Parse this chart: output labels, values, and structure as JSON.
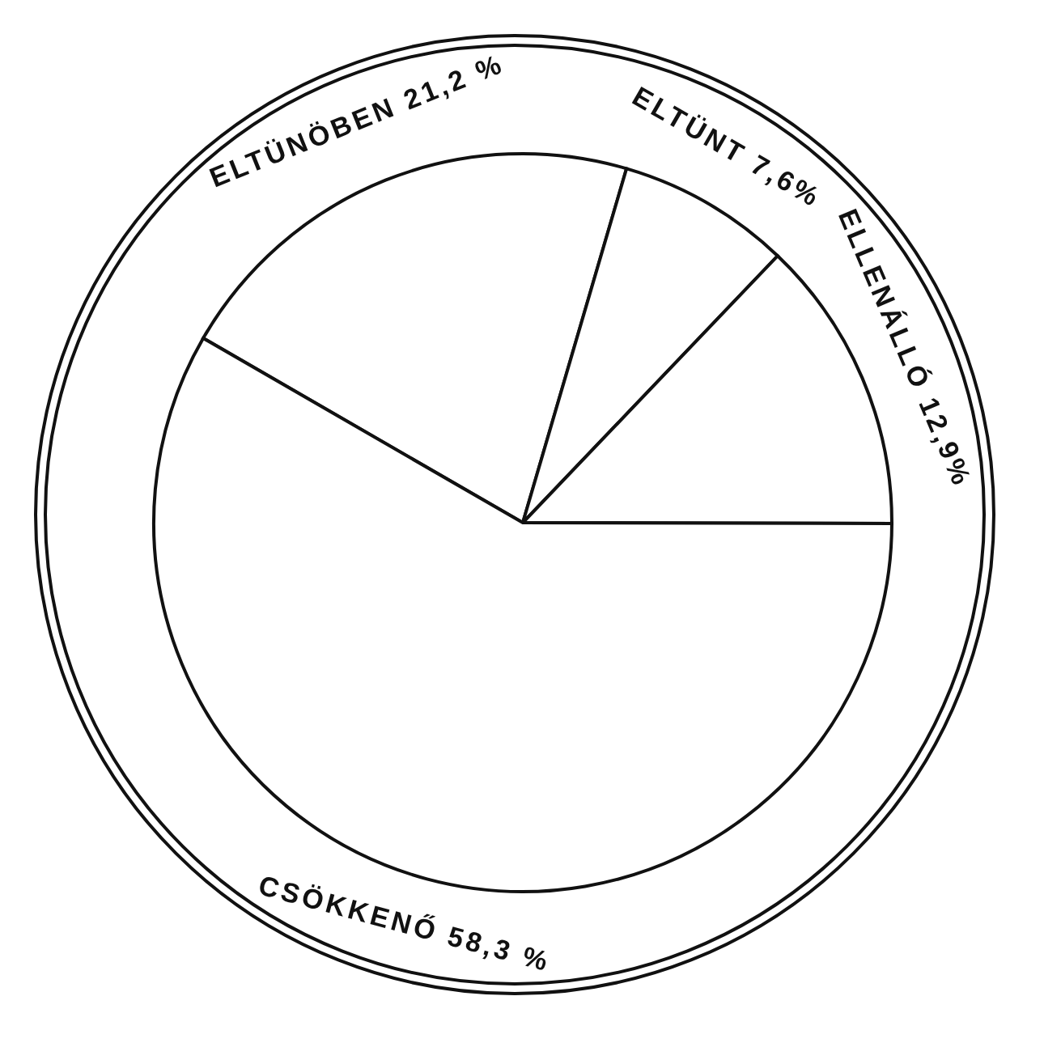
{
  "chart_data": {
    "type": "pie",
    "categories": [
      "ELTÜNÖBEN",
      "ELTÜNT",
      "ELLENÁLLÓ",
      "CSÖKKENŐ"
    ],
    "values": [
      21.2,
      7.6,
      12.9,
      58.3
    ],
    "value_labels": [
      "21,2 %",
      "7,6%",
      "12,9%",
      "58,3 %"
    ],
    "colors": [
      "#ffffff",
      "#ffffff",
      "#ffffff",
      "#ffffff"
    ],
    "legend": false
  }
}
